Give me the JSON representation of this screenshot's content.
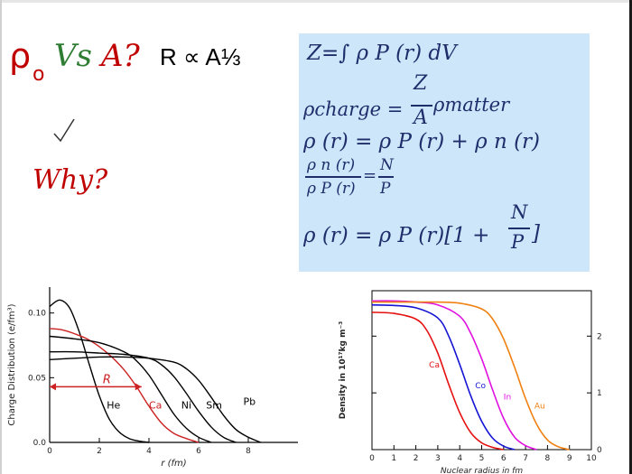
{
  "slide": {
    "title_rho": "ρ",
    "title_sub": "o",
    "title_vs": "Vs",
    "title_a": "A?",
    "title_formula": "R ∝ A⅓",
    "check_icon": "check-mark-icon",
    "why": "Why?",
    "colors": {
      "red": "#c00000",
      "green": "#2e7d32",
      "navy": "#1f2d6b",
      "box": "#cde6fa"
    }
  },
  "equations": {
    "eq1": "Z=∫ ρ P (r) dV",
    "eq2_lhs": "ρcharge =",
    "eq2_num": "Z",
    "eq2_den": "A",
    "eq2_rhs": "ρmatter",
    "eq3": "ρ (r) = ρ P (r) + ρ n (r)",
    "eq4_frac_num": "ρ n (r)",
    "eq4_frac_den": "ρ P (r)",
    "eq4_eq": "=",
    "eq4_num": "N",
    "eq4_den": "P",
    "eq5_lhs": "ρ (r) = ρ P (r)[1 +",
    "eq5_num": "N",
    "eq5_den": "P",
    "eq5_close": "]"
  },
  "chart_data": [
    {
      "type": "line",
      "title": "",
      "xlabel": "r (fm)",
      "ylabel": "Charge Distribution (e/fm³)",
      "xlim": [
        0,
        10
      ],
      "ylim": [
        0,
        0.12
      ],
      "xticks": [
        "0",
        "2",
        "4",
        "6",
        "8"
      ],
      "yticks": [
        "0.0",
        "0.05",
        "0.10"
      ],
      "series": [
        {
          "name": "He",
          "color": "#000000",
          "x": [
            0.0,
            0.4,
            0.8,
            1.2,
            1.6,
            2.0,
            2.4,
            2.8,
            3.2,
            3.6,
            4.0
          ],
          "values": [
            0.105,
            0.11,
            0.104,
            0.085,
            0.06,
            0.036,
            0.018,
            0.008,
            0.003,
            0.001,
            0.0
          ]
        },
        {
          "name": "Ca",
          "color": "#cc2222",
          "x": [
            0.0,
            0.5,
            1.0,
            1.5,
            2.0,
            2.5,
            3.0,
            3.5,
            4.0,
            4.5,
            5.0,
            5.5,
            6.0
          ],
          "values": [
            0.088,
            0.087,
            0.084,
            0.08,
            0.074,
            0.066,
            0.056,
            0.043,
            0.028,
            0.015,
            0.007,
            0.003,
            0.0
          ]
        },
        {
          "name": "Ni",
          "color": "#000000",
          "x": [
            0.0,
            1.0,
            2.0,
            3.0,
            3.5,
            4.0,
            4.5,
            5.0,
            5.5,
            6.0,
            6.5
          ],
          "values": [
            0.082,
            0.08,
            0.077,
            0.07,
            0.063,
            0.052,
            0.037,
            0.022,
            0.011,
            0.004,
            0.0
          ]
        },
        {
          "name": "Sm",
          "color": "#000000",
          "x": [
            0.0,
            1.0,
            2.0,
            3.0,
            4.0,
            4.5,
            5.0,
            5.5,
            6.0,
            6.5,
            7.0,
            7.5
          ],
          "values": [
            0.07,
            0.07,
            0.069,
            0.068,
            0.065,
            0.06,
            0.051,
            0.038,
            0.024,
            0.012,
            0.004,
            0.0
          ]
        },
        {
          "name": "Pb",
          "color": "#000000",
          "x": [
            0.0,
            1.0,
            2.0,
            3.0,
            4.0,
            5.0,
            5.5,
            6.0,
            6.5,
            7.0,
            7.5,
            8.0,
            8.5
          ],
          "values": [
            0.064,
            0.065,
            0.066,
            0.066,
            0.065,
            0.062,
            0.057,
            0.048,
            0.035,
            0.021,
            0.01,
            0.004,
            0.0
          ]
        }
      ],
      "annotation": {
        "label": "R",
        "from_x": 0,
        "to_x": 3.7,
        "y": 0.043
      }
    },
    {
      "type": "line",
      "title": "",
      "xlabel": "Nuclear radius in fm",
      "ylabel": "Density in 10¹⁷kg m⁻³",
      "xlim": [
        0,
        10
      ],
      "ylim": [
        0,
        2.8
      ],
      "xticks": [
        "0",
        "1",
        "2",
        "3",
        "4",
        "5",
        "6",
        "7",
        "8",
        "9",
        "10"
      ],
      "yticks": [
        "0",
        "1",
        "2"
      ],
      "series": [
        {
          "name": "Ca",
          "color": "#e51010",
          "x": [
            0.0,
            1.0,
            2.0,
            2.5,
            3.0,
            3.5,
            4.0,
            4.5,
            5.0,
            5.5,
            6.0
          ],
          "values": [
            2.42,
            2.4,
            2.3,
            2.1,
            1.7,
            1.15,
            0.65,
            0.3,
            0.12,
            0.04,
            0.0
          ]
        },
        {
          "name": "Co",
          "color": "#1414d4",
          "x": [
            0.0,
            1.0,
            2.0,
            3.0,
            3.5,
            4.0,
            4.5,
            5.0,
            5.5,
            6.0,
            6.5
          ],
          "values": [
            2.55,
            2.54,
            2.5,
            2.32,
            2.0,
            1.5,
            0.95,
            0.5,
            0.2,
            0.06,
            0.0
          ]
        },
        {
          "name": "In",
          "color": "#e010e0",
          "x": [
            0.0,
            1.0,
            2.0,
            3.0,
            4.0,
            4.5,
            5.0,
            5.5,
            6.0,
            6.5,
            7.0,
            7.5
          ],
          "values": [
            2.62,
            2.62,
            2.6,
            2.55,
            2.35,
            2.05,
            1.6,
            1.05,
            0.55,
            0.22,
            0.07,
            0.0
          ]
        },
        {
          "name": "Au",
          "color": "#f08010",
          "x": [
            0.0,
            1.0,
            2.0,
            3.0,
            4.0,
            5.0,
            5.5,
            6.0,
            6.5,
            7.0,
            7.5,
            8.0,
            8.5,
            9.0
          ],
          "values": [
            2.6,
            2.6,
            2.6,
            2.6,
            2.58,
            2.48,
            2.3,
            1.95,
            1.45,
            0.9,
            0.45,
            0.17,
            0.05,
            0.0
          ]
        }
      ]
    }
  ]
}
